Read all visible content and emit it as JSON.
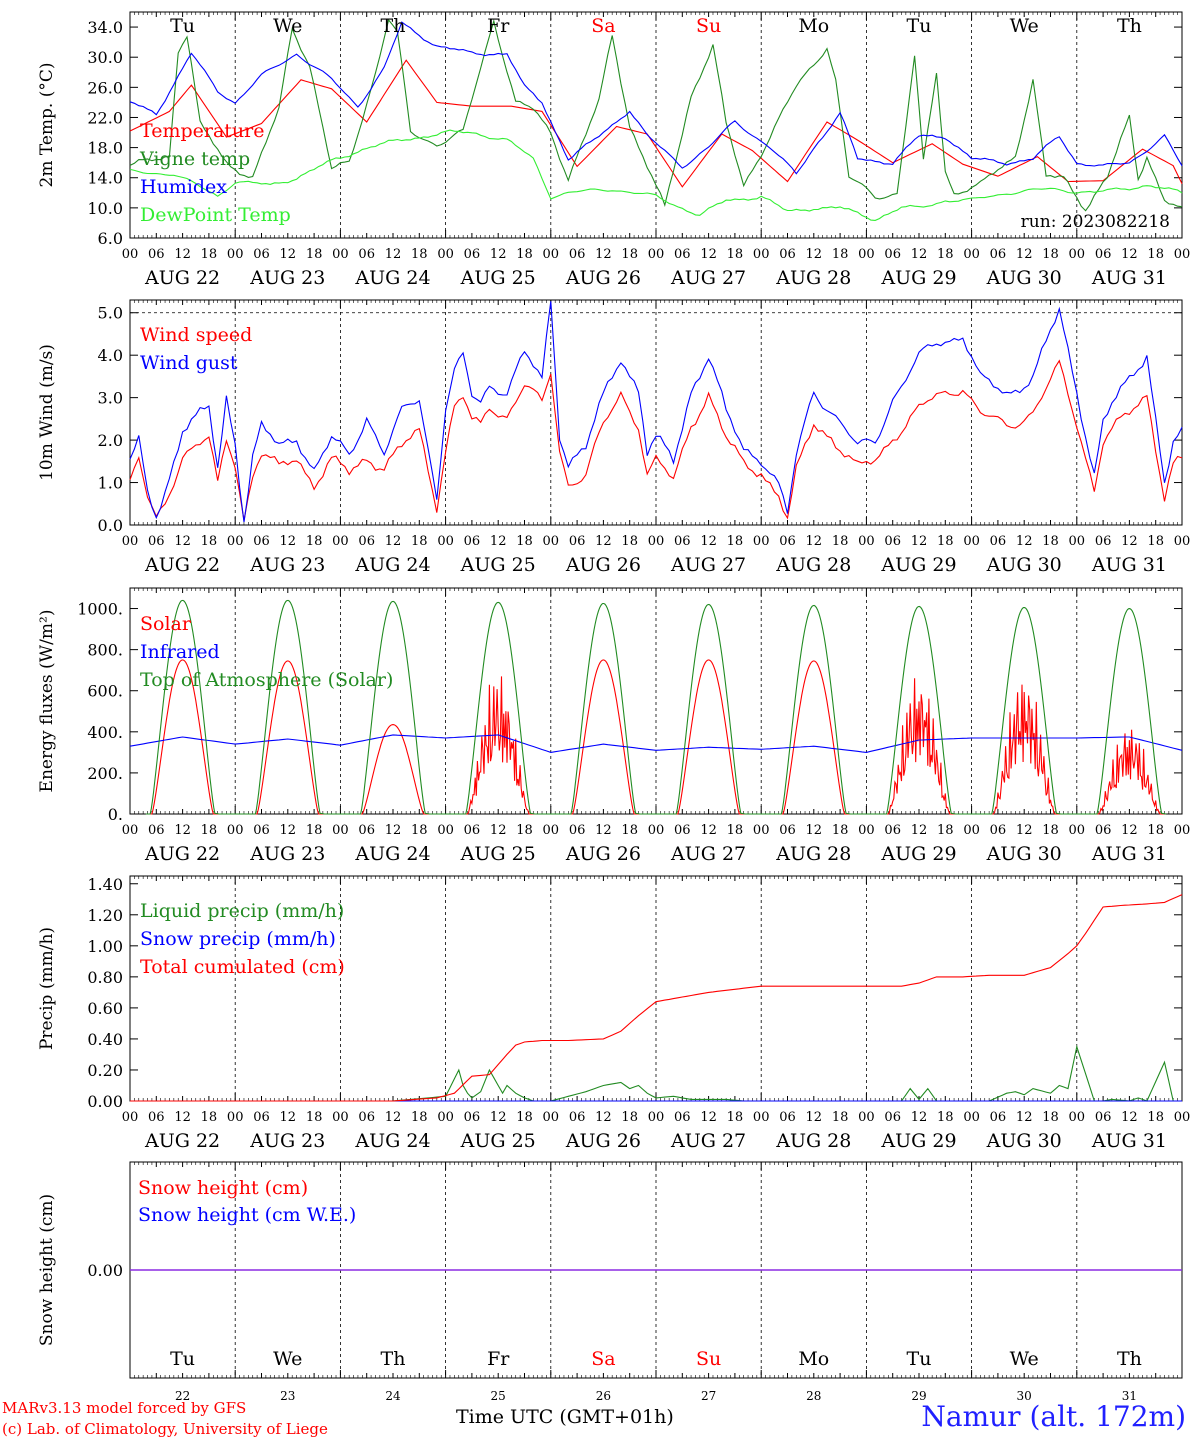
{
  "meta": {
    "run_label": "run: 2023082218",
    "x_title": "Time UTC (GMT+01h)",
    "footer_model": "MARv3.13 model forced by GFS",
    "footer_lab": "(c) Lab. of Climatology, University of Liege",
    "station": "Namur (alt. 172m)"
  },
  "colors": {
    "red": "#ff0000",
    "green": "#228B22",
    "blue": "#0000ff",
    "lime": "#33ee33",
    "purple": "#8b2be2"
  },
  "days": [
    "22",
    "23",
    "24",
    "25",
    "26",
    "27",
    "28",
    "29",
    "30",
    "31"
  ],
  "date_labels": [
    "AUG 22",
    "AUG 23",
    "AUG 24",
    "AUG 25",
    "AUG 26",
    "AUG 27",
    "AUG 28",
    "AUG 29",
    "AUG 30",
    "AUG 31"
  ],
  "weekdays": [
    "Tu",
    "We",
    "Th",
    "Fr",
    "Sa",
    "Su",
    "Mo",
    "Tu",
    "We",
    "Th"
  ],
  "weekend_days": [
    4,
    5
  ],
  "hour_ticks": [
    "00",
    "06",
    "12",
    "18"
  ],
  "chart_data": [
    {
      "type": "line",
      "ylabel": "2m Temp. (°C)",
      "ylim": [
        6,
        36
      ],
      "yticks": [
        "6.0",
        "10.0",
        "14.0",
        "18.0",
        "22.0",
        "26.0",
        "30.0",
        "34.0"
      ],
      "ytick_values": [
        6,
        10,
        14,
        18,
        22,
        26,
        30,
        34
      ],
      "x_unit": "hours since Aug 22 00 UTC",
      "series": [
        {
          "name": "Temperature",
          "color": "red",
          "x": [
            0,
            9,
            14,
            22,
            30,
            39,
            46,
            54,
            63,
            70,
            78,
            87,
            94,
            102,
            111,
            118,
            126,
            135,
            142,
            150,
            159,
            166,
            174,
            183,
            190,
            198,
            207,
            214,
            222,
            231,
            238,
            240
          ],
          "values": [
            20.2,
            22.8,
            26.3,
            19.4,
            21.2,
            27.0,
            25.8,
            21.4,
            29.6,
            24.0,
            23.5,
            23.5,
            22.8,
            15.5,
            20.8,
            19.8,
            12.8,
            19.8,
            17.6,
            13.5,
            21.4,
            19.0,
            16.0,
            18.5,
            15.8,
            14.2,
            16.8,
            13.5,
            13.6,
            17.8,
            15.6,
            13.2
          ]
        },
        {
          "name": "Vigne temp",
          "color": "green",
          "x": [
            0,
            9,
            11,
            13,
            16,
            22,
            28,
            34,
            37,
            41,
            46,
            50,
            56,
            59,
            61,
            64,
            70,
            76,
            83,
            88,
            92,
            96,
            100,
            107,
            110,
            114,
            122,
            128,
            133,
            136,
            140,
            152,
            159,
            161,
            164,
            170,
            175,
            179,
            181,
            184,
            186,
            188,
            194,
            202,
            206,
            209,
            213,
            218,
            223,
            228,
            230,
            232,
            236,
            240
          ],
          "values": [
            15.5,
            17,
            31,
            33,
            21,
            16,
            14,
            23,
            34,
            29,
            15,
            16,
            28,
            35,
            33,
            20,
            18.5,
            20,
            35,
            24,
            23,
            20,
            14,
            24,
            33,
            21,
            10,
            25,
            31.5,
            21,
            13,
            26,
            31.5,
            27,
            14,
            11.5,
            12,
            30,
            16,
            28,
            15,
            12,
            13,
            17,
            27,
            14,
            14,
            10,
            14,
            22,
            14,
            17,
            11,
            9.6
          ]
        },
        {
          "name": "Humidex",
          "color": "blue",
          "x": [
            0,
            6,
            14,
            20,
            24,
            30,
            38,
            46,
            52,
            58,
            62,
            66,
            70,
            78,
            86,
            90,
            94,
            100,
            106,
            114,
            118,
            126,
            132,
            138,
            146,
            152,
            156,
            162,
            166,
            174,
            180,
            186,
            192,
            200,
            206,
            212,
            216,
            222,
            228,
            236,
            240
          ],
          "values": [
            24,
            22.5,
            30.5,
            25.5,
            24,
            27.5,
            30.5,
            27,
            23.5,
            28.5,
            34.5,
            33,
            31.5,
            30.5,
            30.5,
            26,
            24,
            16.5,
            19,
            23,
            19.5,
            15.5,
            18,
            21.5,
            18,
            14.5,
            18,
            22.5,
            16.5,
            16,
            19.5,
            19.5,
            16.5,
            16,
            16.5,
            19.5,
            16,
            15.5,
            16,
            19.5,
            15.5
          ]
        },
        {
          "name": "DewPoint Temp",
          "color": "lime",
          "x": [
            0,
            10,
            20,
            24,
            32,
            38,
            46,
            54,
            62,
            72,
            78,
            86,
            92,
            96,
            100,
            110,
            120,
            130,
            136,
            144,
            150,
            156,
            162,
            170,
            176,
            180,
            186,
            192,
            200,
            210,
            220,
            226,
            232,
            240
          ],
          "values": [
            14.8,
            14.5,
            11.6,
            13.5,
            13,
            14,
            16.2,
            18,
            19,
            20,
            20,
            19,
            16.5,
            11.5,
            12,
            12.5,
            11.5,
            9,
            11,
            11.5,
            9.5,
            10,
            10,
            8.5,
            10,
            10,
            11,
            11,
            12,
            12.5,
            12,
            12.5,
            13,
            12
          ]
        }
      ]
    },
    {
      "type": "line",
      "ylabel": "10m Wind (m/s)",
      "ylim": [
        0,
        5.3
      ],
      "yticks": [
        "0.0",
        "1.0",
        "2.0",
        "3.0",
        "4.0",
        "5.0"
      ],
      "ytick_values": [
        0,
        1,
        2,
        3,
        4,
        5
      ],
      "x_unit": "hours since Aug 22 00 UTC",
      "series": [
        {
          "name": "Wind speed",
          "color": "red",
          "x": [
            0,
            2,
            4,
            6,
            8,
            12,
            18,
            20,
            22,
            24,
            26,
            28,
            30,
            34,
            38,
            42,
            46,
            50,
            54,
            58,
            62,
            66,
            70,
            72,
            74,
            76,
            78,
            80,
            82,
            86,
            90,
            94,
            96,
            98,
            100,
            104,
            108,
            112,
            116,
            118,
            120,
            124,
            128,
            132,
            136,
            140,
            144,
            146,
            148,
            150,
            152,
            156,
            160,
            166,
            170,
            174,
            180,
            184,
            190,
            194,
            200,
            206,
            212,
            216,
            220,
            222,
            224,
            228,
            232,
            236,
            238,
            240
          ],
          "values": [
            1.0,
            1.5,
            0.6,
            0.1,
            0.5,
            1.7,
            2.0,
            0.9,
            2.0,
            1.5,
            0.2,
            1.2,
            1.7,
            1.3,
            1.6,
            1.0,
            1.5,
            1.2,
            1.6,
            1.4,
            1.8,
            2.2,
            0.5,
            1.8,
            2.8,
            3.0,
            2.4,
            2.3,
            2.8,
            2.6,
            3.3,
            2.8,
            3.6,
            1.8,
            1.0,
            1.2,
            2.3,
            3.1,
            2.4,
            1.2,
            1.5,
            1.0,
            2.4,
            3.1,
            2.0,
            1.4,
            1.3,
            1.0,
            0.7,
            0.1,
            1.2,
            2.4,
            2.1,
            1.3,
            1.5,
            2.1,
            2.7,
            3.0,
            3.3,
            2.6,
            2.3,
            2.7,
            3.7,
            2.4,
            0.9,
            2.0,
            2.2,
            2.6,
            3.1,
            0.7,
            1.4,
            1.5
          ]
        },
        {
          "name": "Wind gust",
          "color": "blue",
          "x": [
            0,
            2,
            4,
            6,
            8,
            12,
            18,
            20,
            22,
            24,
            26,
            28,
            30,
            34,
            38,
            42,
            46,
            50,
            54,
            58,
            62,
            66,
            70,
            72,
            74,
            76,
            78,
            80,
            82,
            86,
            90,
            94,
            96,
            98,
            100,
            104,
            108,
            112,
            116,
            118,
            120,
            124,
            128,
            132,
            136,
            140,
            144,
            146,
            148,
            150,
            152,
            156,
            160,
            166,
            170,
            174,
            180,
            184,
            190,
            194,
            200,
            206,
            212,
            216,
            220,
            222,
            224,
            228,
            232,
            236,
            238,
            240
          ],
          "values": [
            1.5,
            1.9,
            0.7,
            0.2,
            0.8,
            2.3,
            2.7,
            1.3,
            3.0,
            2.0,
            0.2,
            1.6,
            2.3,
            1.8,
            2.1,
            1.3,
            2.0,
            1.6,
            2.6,
            1.7,
            2.6,
            3.0,
            0.7,
            2.8,
            3.6,
            3.9,
            3.0,
            2.9,
            3.3,
            3.2,
            4.0,
            3.4,
            5.3,
            2.2,
            1.5,
            1.8,
            3.0,
            4.0,
            3.2,
            1.7,
            2.0,
            1.5,
            3.2,
            4.0,
            2.6,
            1.8,
            1.6,
            1.3,
            0.9,
            0.2,
            1.6,
            3.2,
            2.7,
            1.8,
            2.0,
            3.0,
            3.9,
            4.3,
            4.5,
            3.4,
            3.1,
            3.5,
            5.0,
            3.2,
            1.2,
            2.4,
            2.8,
            3.4,
            4.1,
            1.0,
            1.9,
            2.1
          ]
        }
      ]
    },
    {
      "type": "line",
      "ylabel": "Energy fluxes (W/m²)",
      "ylim": [
        0,
        1100
      ],
      "yticks": [
        "0.",
        "200.",
        "400.",
        "600.",
        "800.",
        "1000."
      ],
      "ytick_values": [
        0,
        200,
        400,
        600,
        800,
        1000
      ],
      "x_unit": "hours since Aug 22 00 UTC",
      "series": [
        {
          "name": "Solar",
          "color": "red",
          "daily_peak_hour": 12,
          "daily_halfwidth_hours": 7,
          "daily_peaks": [
            750,
            745,
            435,
            720,
            750,
            750,
            745,
            720,
            720,
            460
          ]
        },
        {
          "name": "Infrared",
          "color": "blue",
          "x": [
            0,
            12,
            24,
            36,
            48,
            60,
            72,
            84,
            96,
            108,
            120,
            132,
            144,
            156,
            168,
            180,
            192,
            204,
            216,
            228,
            240
          ],
          "values": [
            330,
            375,
            340,
            365,
            335,
            385,
            370,
            385,
            300,
            340,
            310,
            325,
            315,
            330,
            300,
            360,
            370,
            370,
            370,
            375,
            310
          ]
        },
        {
          "name": "Top of Atmosphere (Solar)",
          "color": "green",
          "daily_peak_hour": 12,
          "daily_halfwidth_hours": 7.4,
          "daily_peaks": [
            1040,
            1040,
            1035,
            1030,
            1025,
            1020,
            1015,
            1010,
            1005,
            1000
          ]
        }
      ]
    },
    {
      "type": "line",
      "ylabel": "Precip (mm/h)",
      "ylim": [
        0,
        1.45
      ],
      "yticks": [
        "0.00",
        "0.20",
        "0.40",
        "0.60",
        "0.80",
        "1.00",
        "1.20",
        "1.40"
      ],
      "ytick_values": [
        0,
        0.2,
        0.4,
        0.6,
        0.8,
        1.0,
        1.2,
        1.4
      ],
      "x_unit": "hours since Aug 22 00 UTC",
      "series": [
        {
          "name": "Liquid precip (mm/h)",
          "color": "green",
          "x": [
            0,
            60,
            64,
            68,
            72,
            75,
            76,
            77,
            78,
            80,
            82,
            85,
            86,
            88,
            90,
            92,
            96,
            100,
            104,
            108,
            112,
            114,
            116,
            118,
            120,
            124,
            128,
            132,
            136,
            140,
            144,
            162,
            176,
            178,
            180,
            182,
            184,
            196,
            200,
            202,
            204,
            206,
            210,
            212,
            214,
            216,
            220,
            222,
            224,
            228,
            230,
            232,
            236,
            238,
            240
          ],
          "values": [
            0,
            0,
            0.01,
            0.02,
            0.03,
            0.2,
            0.1,
            0.05,
            0.02,
            0.06,
            0.2,
            0.05,
            0.1,
            0.05,
            0.02,
            0,
            0,
            0.03,
            0.06,
            0.1,
            0.12,
            0.08,
            0.1,
            0.05,
            0.02,
            0.03,
            0.01,
            0.01,
            0.01,
            0,
            0,
            0,
            0,
            0.08,
            0.01,
            0.08,
            0,
            0,
            0.05,
            0.06,
            0.04,
            0.08,
            0.05,
            0.1,
            0.08,
            0.35,
            0,
            0,
            0.01,
            0,
            0.02,
            0,
            0.25,
            0,
            0
          ]
        },
        {
          "name": "Snow precip (mm/h)",
          "color": "blue",
          "x": [
            0,
            240
          ],
          "values": [
            0,
            0
          ]
        },
        {
          "name": "Total cumulated (cm)",
          "color": "red",
          "x": [
            0,
            60,
            70,
            74,
            78,
            82,
            86,
            88,
            90,
            94,
            100,
            108,
            112,
            116,
            120,
            126,
            132,
            138,
            144,
            150,
            160,
            170,
            176,
            180,
            184,
            190,
            196,
            204,
            210,
            214,
            216,
            218,
            222,
            226,
            232,
            236,
            240
          ],
          "values": [
            0,
            0,
            0.02,
            0.05,
            0.16,
            0.17,
            0.3,
            0.36,
            0.38,
            0.39,
            0.39,
            0.4,
            0.45,
            0.55,
            0.64,
            0.67,
            0.7,
            0.72,
            0.74,
            0.74,
            0.74,
            0.74,
            0.74,
            0.76,
            0.8,
            0.8,
            0.81,
            0.81,
            0.86,
            0.95,
            1.0,
            1.08,
            1.25,
            1.26,
            1.27,
            1.28,
            1.33
          ]
        }
      ]
    },
    {
      "type": "line",
      "ylabel": "Snow height (cm)",
      "ylim": [
        -1,
        1
      ],
      "yticks": [
        "0.00"
      ],
      "ytick_values": [
        0
      ],
      "x_unit": "hours since Aug 22 00 UTC",
      "series": [
        {
          "name": "Snow height (cm)",
          "color": "red",
          "x": [
            0,
            240
          ],
          "values": [
            0,
            0
          ]
        },
        {
          "name": "Snow height (cm W.E.)",
          "color": "blue",
          "x": [
            0,
            240
          ],
          "values": [
            0,
            0
          ]
        }
      ]
    }
  ]
}
